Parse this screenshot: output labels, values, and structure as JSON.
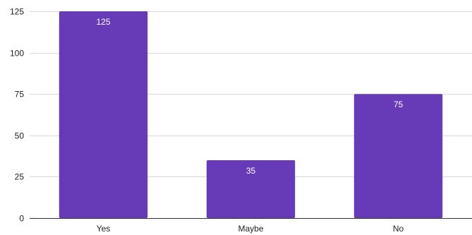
{
  "chart_data": {
    "type": "bar",
    "categories": [
      "Yes",
      "Maybe",
      "No"
    ],
    "values": [
      125,
      35,
      75
    ],
    "data_labels": [
      "125",
      "35",
      "75"
    ],
    "y_ticks": [
      0,
      25,
      50,
      75,
      100,
      125
    ],
    "ylim": [
      0,
      125
    ],
    "grid": true,
    "legend": "none",
    "colors": {
      "bar": "#673ab7",
      "gridline": "#d9d9d9",
      "baseline": "#333333",
      "label_text": "#222222",
      "data_label_text": "#ffffff"
    }
  }
}
